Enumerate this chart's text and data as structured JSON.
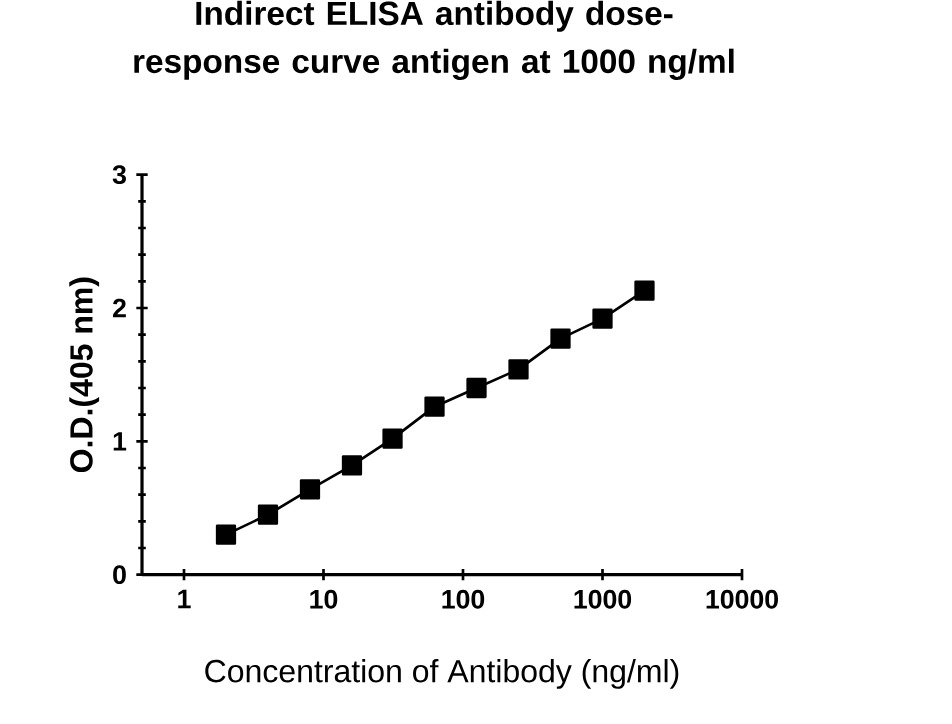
{
  "chart_data": {
    "type": "line",
    "title": "Indirect ELISA antibody dose-response curve antigen at 1000 ng/ml",
    "xlabel": "Concentration of Antibody (ng/ml)",
    "ylabel": "O.D.(405 nm)",
    "log": "x",
    "xlim": [
      0.5,
      10000
    ],
    "xticks": [
      1,
      10,
      100,
      1000,
      10000
    ],
    "ylim": [
      0,
      3
    ],
    "yticks": [
      0,
      1,
      2,
      3
    ],
    "marker": "square",
    "line_style": "solid",
    "series": [
      {
        "color": "#000000",
        "x": [
          2,
          4,
          8,
          16,
          31.25,
          62.5,
          125,
          250,
          500,
          1000,
          2000
        ],
        "values": [
          0.3,
          0.45,
          0.64,
          0.82,
          1.02,
          1.26,
          1.4,
          1.54,
          1.77,
          1.92,
          2.13
        ]
      }
    ]
  }
}
